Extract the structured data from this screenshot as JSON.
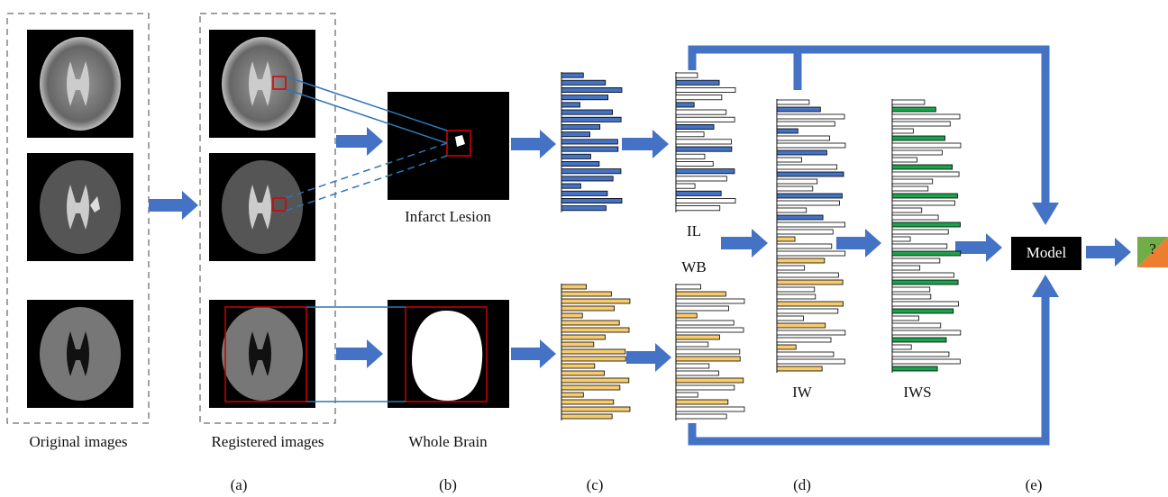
{
  "labels": {
    "original": "Original images",
    "registered": "Registered images",
    "infarct": "Infarct Lesion",
    "whole": "Whole Brain",
    "il": "IL",
    "wb": "WB",
    "iw": "IW",
    "iws": "IWS",
    "model": "Model",
    "output": "?"
  },
  "panels": [
    "(a)",
    "(b)",
    "(c)",
    "(d)",
    "(e)"
  ]
}
